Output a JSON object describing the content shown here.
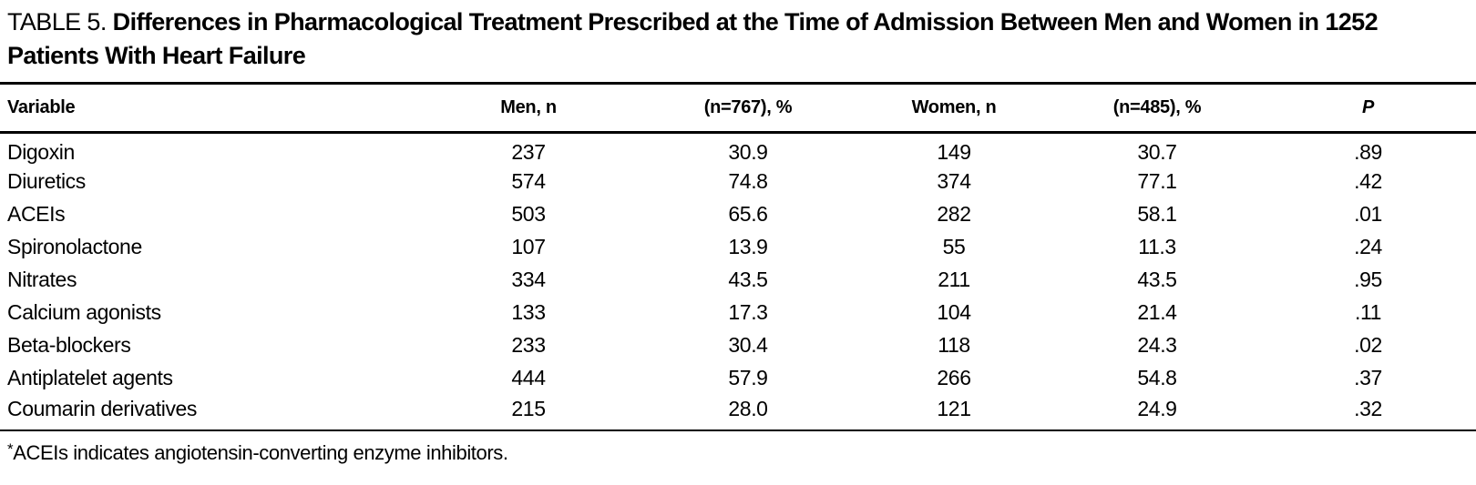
{
  "table": {
    "label": "TABLE 5.",
    "title": "Differences in Pharmacological Treatment Prescribed at the Time of Admission Between Men and Women in 1252 Patients With Heart Failure",
    "columns": [
      "Variable",
      "Men, n",
      "(n=767), %",
      "Women, n",
      "(n=485), %",
      "P"
    ],
    "rows": [
      [
        "Digoxin",
        "237",
        "30.9",
        "149",
        "30.7",
        ".89"
      ],
      [
        "Diuretics",
        "574",
        "74.8",
        "374",
        "77.1",
        ".42"
      ],
      [
        "ACEIs",
        "503",
        "65.6",
        "282",
        "58.1",
        ".01"
      ],
      [
        "Spironolactone",
        "107",
        "13.9",
        "55",
        "11.3",
        ".24"
      ],
      [
        "Nitrates",
        "334",
        "43.5",
        "211",
        "43.5",
        ".95"
      ],
      [
        "Calcium agonists",
        "133",
        "17.3",
        "104",
        "21.4",
        ".11"
      ],
      [
        "Beta-blockers",
        "233",
        "30.4",
        "118",
        "24.3",
        ".02"
      ],
      [
        "Antiplatelet agents",
        "444",
        "57.9",
        "266",
        "54.8",
        ".37"
      ],
      [
        "Coumarin derivatives",
        "215",
        "28.0",
        "121",
        "24.9",
        ".32"
      ]
    ],
    "footnote_marker": "*",
    "footnote_text": "ACEIs indicates angiotensin-converting enzyme inhibitors."
  },
  "chart_data": {
    "type": "table",
    "title": "TABLE 5. Differences in Pharmacological Treatment Prescribed at the Time of Admission Between Men and Women in 1252 Patients With Heart Failure",
    "columns": [
      "Variable",
      "Men, n",
      "(n=767), %",
      "Women, n",
      "(n=485), %",
      "P"
    ],
    "rows": [
      [
        "Digoxin",
        237,
        30.9,
        149,
        30.7,
        0.89
      ],
      [
        "Diuretics",
        574,
        74.8,
        374,
        77.1,
        0.42
      ],
      [
        "ACEIs",
        503,
        65.6,
        282,
        58.1,
        0.01
      ],
      [
        "Spironolactone",
        107,
        13.9,
        55,
        11.3,
        0.24
      ],
      [
        "Nitrates",
        334,
        43.5,
        211,
        43.5,
        0.95
      ],
      [
        "Calcium agonists",
        133,
        17.3,
        104,
        21.4,
        0.11
      ],
      [
        "Beta-blockers",
        233,
        30.4,
        118,
        24.3,
        0.02
      ],
      [
        "Antiplatelet agents",
        444,
        57.9,
        266,
        54.8,
        0.37
      ],
      [
        "Coumarin derivatives",
        215,
        28.0,
        121,
        24.9,
        0.32
      ]
    ],
    "footnote": "*ACEIs indicates angiotensin-converting enzyme inhibitors."
  }
}
